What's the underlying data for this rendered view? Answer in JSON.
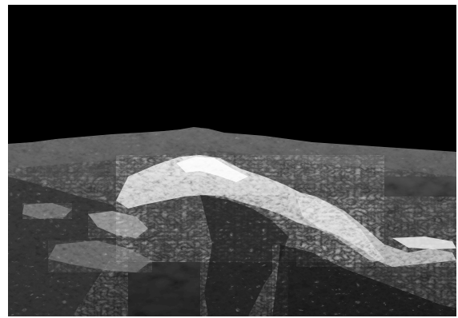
{
  "scene": {
    "subject": "mountain-terrain-render",
    "sky_color": "#000000",
    "frame_border_color": "#ffffff"
  }
}
